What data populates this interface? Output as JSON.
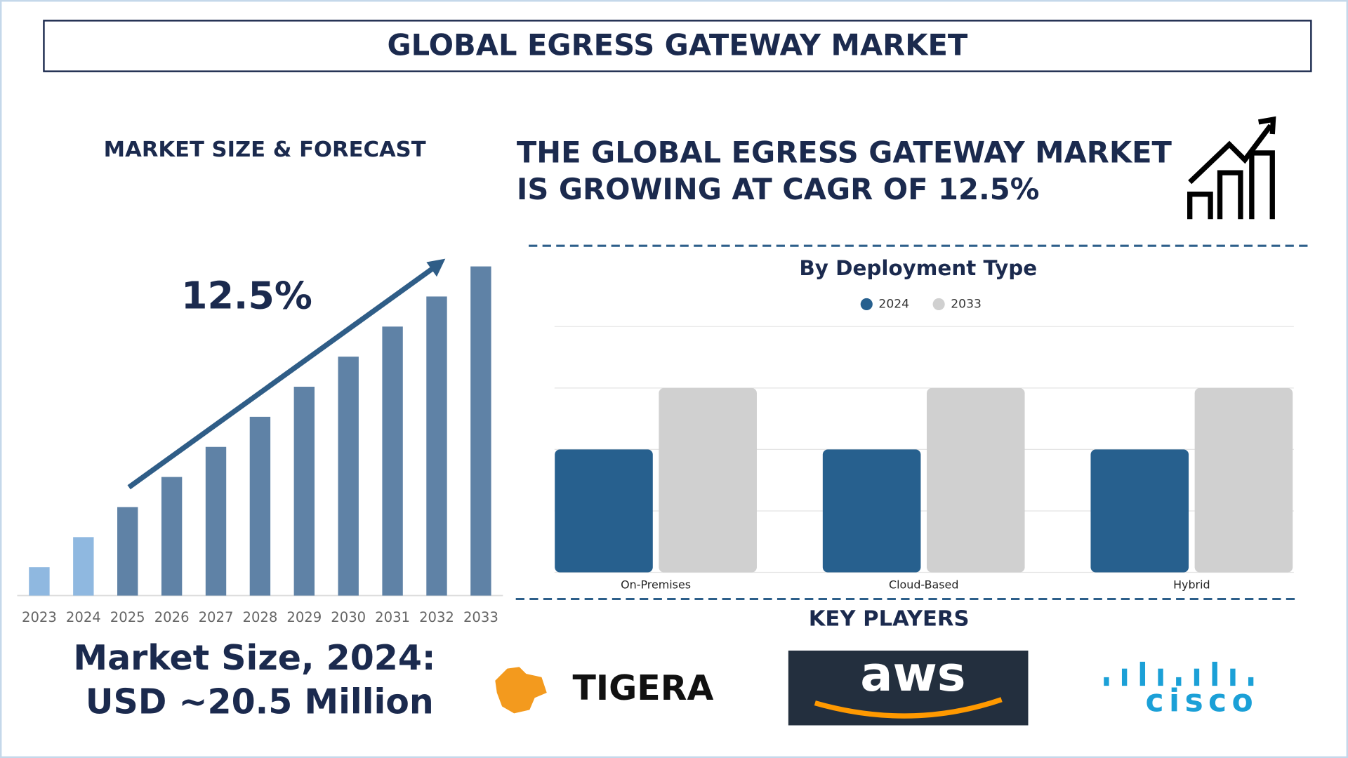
{
  "header": {
    "title": "GLOBAL EGRESS GATEWAY MARKET"
  },
  "headline": {
    "lines": [
      "THE GLOBAL EGRESS GATEWAY MARKET",
      "IS GROWING AT CAGR OF 12.5%"
    ]
  },
  "market_size": {
    "label": "Market Size, 2024:",
    "value": "USD ~20.5 Million"
  },
  "key_players": {
    "title": "KEY PLAYERS",
    "names": [
      "TIGERA",
      "aws",
      "cisco"
    ]
  },
  "chart_data": [
    {
      "type": "bar",
      "title": "MARKET SIZE & FORECAST",
      "annotation": "12.5%",
      "categories": [
        "2023",
        "2024",
        "2025",
        "2026",
        "2027",
        "2028",
        "2029",
        "2030",
        "2031",
        "2032",
        "2033"
      ],
      "values": [
        33,
        68,
        103,
        138,
        173,
        208,
        243,
        278,
        313,
        348,
        383
      ],
      "colors": [
        "#8fb8e0",
        "#8fb8e0",
        "#5f82a6",
        "#5f82a6",
        "#5f82a6",
        "#5f82a6",
        "#5f82a6",
        "#5f82a6",
        "#5f82a6",
        "#5f82a6",
        "#5f82a6"
      ],
      "ylim": [
        0,
        400
      ]
    },
    {
      "type": "grouped_bar",
      "title": "By Deployment Type",
      "categories": [
        "On-Premises",
        "Cloud-Based",
        "Hybrid"
      ],
      "series": [
        {
          "name": "2024",
          "color": "#27608e",
          "values": [
            2,
            2,
            2
          ]
        },
        {
          "name": "2033",
          "color": "#d0d0d0",
          "values": [
            3,
            3,
            3
          ]
        }
      ],
      "ylim": [
        0,
        4
      ],
      "yticks": [
        0,
        1,
        2,
        3,
        4
      ],
      "grid": true,
      "legend": "top"
    }
  ]
}
